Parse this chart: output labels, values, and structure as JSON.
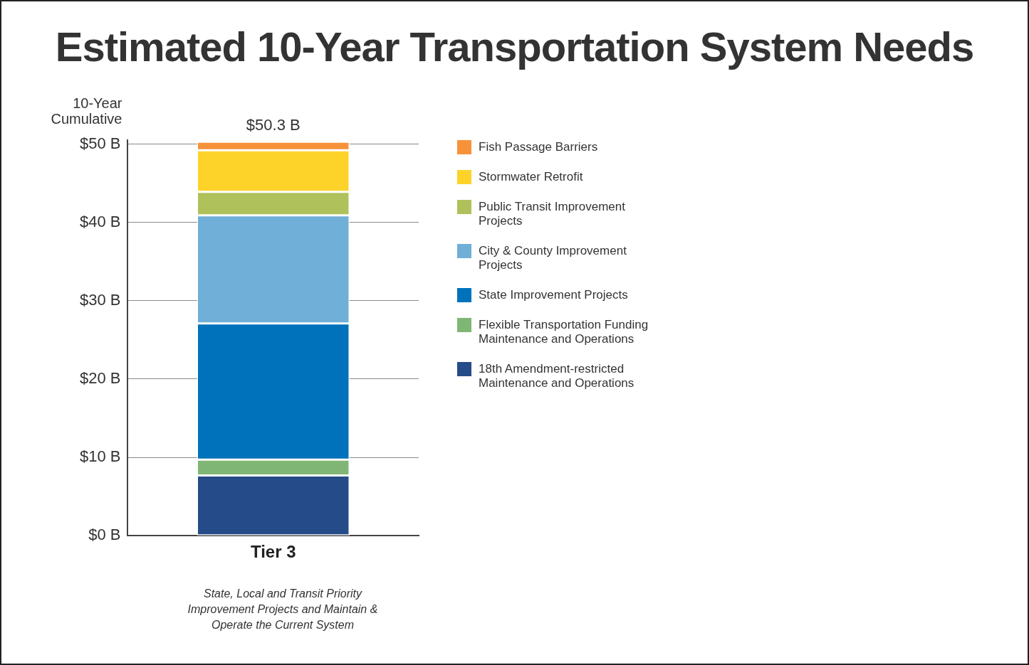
{
  "chart_data": {
    "type": "bar",
    "title": "Estimated 10-Year Transportation System Needs",
    "ylabel": "10-Year Cumulative",
    "categories": [
      "Tier 3"
    ],
    "stacked": true,
    "series": [
      {
        "name": "18th Amendment-restricted Maintenance and Operations",
        "color": "#254b88",
        "values": [
          7.7
        ]
      },
      {
        "name": "Flexible Transportation Funding Maintenance and Operations",
        "color": "#7fb675",
        "values": [
          2.0
        ]
      },
      {
        "name": "State Improvement Projects",
        "color": "#0072bb",
        "values": [
          17.4
        ]
      },
      {
        "name": "City & County Improvement Projects",
        "color": "#70afd7",
        "values": [
          13.8
        ]
      },
      {
        "name": "Public Transit Improvement Projects",
        "color": "#afc15b",
        "values": [
          3.0
        ]
      },
      {
        "name": "Stormwater Retrofit",
        "color": "#fdd32a",
        "values": [
          5.3
        ]
      },
      {
        "name": "Fish Passage Barriers",
        "color": "#f7923a",
        "values": [
          1.1
        ]
      }
    ],
    "totals": [
      "$50.3 B"
    ],
    "ylim": [
      0,
      50.5
    ],
    "yticks": [
      {
        "value": 0,
        "label": "$0 B"
      },
      {
        "value": 10,
        "label": "$10 B"
      },
      {
        "value": 20,
        "label": "$20 B"
      },
      {
        "value": 30,
        "label": "$30 B"
      },
      {
        "value": 40,
        "label": "$40 B"
      },
      {
        "value": 50,
        "label": "$50 B"
      }
    ],
    "grid": "y",
    "legend": "right",
    "annotations": [
      "State, Local  and Transit Priority Improvement Projects and Maintain & Operate the Current System"
    ]
  }
}
